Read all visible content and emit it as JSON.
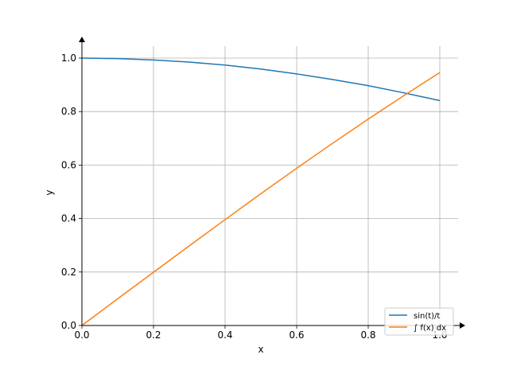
{
  "chart_data": {
    "type": "line",
    "title": "",
    "xlabel": "x",
    "ylabel": "y",
    "xlim": [
      0,
      1.05
    ],
    "ylim": [
      0,
      1.05
    ],
    "grid": true,
    "legend_position": "bottom-right",
    "x_ticks": [
      0.0,
      0.2,
      0.4,
      0.6,
      0.8,
      1.0
    ],
    "y_ticks": [
      0.0,
      0.2,
      0.4,
      0.6,
      0.8,
      1.0
    ],
    "x_tick_labels": [
      "0.0",
      "0.2",
      "0.4",
      "0.6",
      "0.8",
      "1.0"
    ],
    "y_tick_labels": [
      "0.0",
      "0.2",
      "0.4",
      "0.6",
      "0.8",
      "1.0"
    ],
    "series": [
      {
        "name": "sin(t)/t",
        "color": "#1f77b4",
        "x": [
          0.0,
          0.1,
          0.2,
          0.3,
          0.4,
          0.5,
          0.6,
          0.7,
          0.8,
          0.9,
          1.0
        ],
        "y": [
          1.0,
          0.998,
          0.993,
          0.985,
          0.974,
          0.959,
          0.941,
          0.92,
          0.897,
          0.87,
          0.841
        ]
      },
      {
        "name": "∫ f(x) dx",
        "color": "#ff7f0e",
        "x": [
          0.0,
          0.1,
          0.2,
          0.3,
          0.4,
          0.5,
          0.6,
          0.7,
          0.8,
          0.9,
          1.0
        ],
        "y": [
          0.0,
          0.1,
          0.199,
          0.298,
          0.396,
          0.493,
          0.588,
          0.681,
          0.772,
          0.86,
          0.946
        ]
      }
    ]
  }
}
